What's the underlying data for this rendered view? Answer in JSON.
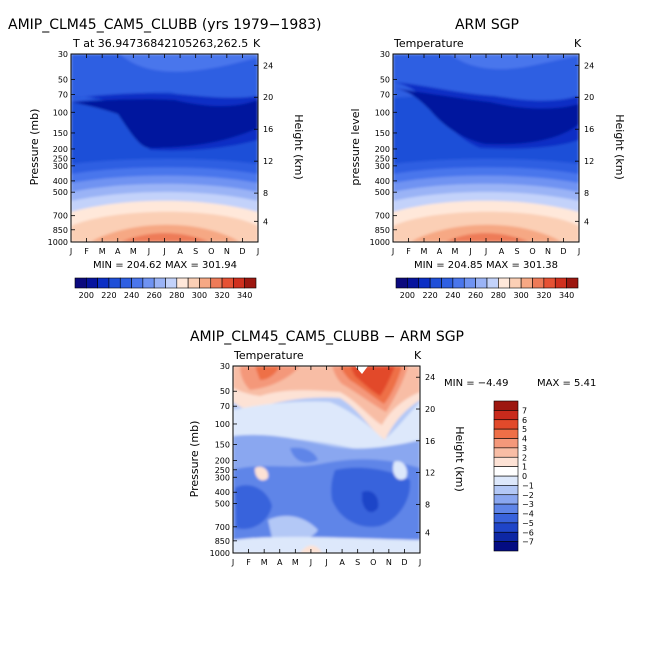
{
  "chart_data": [
    {
      "type": "heatmap",
      "panel": "model",
      "title": "AMIP_CLM45_CAM5_CLUBB (yrs 1979−1983)",
      "subtitle_left": "T at 36.94736842105263,262.5",
      "subtitle_right": "K",
      "ylabel": "Pressure (mb)",
      "y2label": "Height (km)",
      "x_ticks": [
        "J",
        "F",
        "M",
        "A",
        "M",
        "J",
        "J",
        "A",
        "S",
        "O",
        "N",
        "D",
        "J"
      ],
      "y_ticks": [
        "30",
        "50",
        "70",
        "100",
        "150",
        "200",
        "250",
        "300",
        "400",
        "500",
        "700",
        "850",
        "1000"
      ],
      "y2_ticks": [
        "24",
        "20",
        "16",
        "12",
        "8",
        "4"
      ],
      "stats": "MIN = 204.62  MAX = 301.94",
      "colorbar": {
        "levels": [
          190,
          200,
          210,
          220,
          230,
          240,
          250,
          260,
          270,
          280,
          290,
          300,
          310,
          320,
          330,
          340,
          350
        ],
        "labels": [
          "200",
          "220",
          "240",
          "260",
          "280",
          "300",
          "320",
          "340"
        ]
      }
    },
    {
      "type": "heatmap",
      "panel": "observation",
      "title": "ARM SGP",
      "subtitle_left": "Temperature",
      "subtitle_right": "K",
      "ylabel": "pressure level",
      "y2label": "Height (km)",
      "x_ticks": [
        "J",
        "F",
        "M",
        "A",
        "M",
        "J",
        "J",
        "A",
        "S",
        "O",
        "N",
        "D",
        "J"
      ],
      "y_ticks": [
        "30",
        "50",
        "70",
        "100",
        "150",
        "200",
        "250",
        "300",
        "400",
        "500",
        "700",
        "850",
        "1000"
      ],
      "y2_ticks": [
        "24",
        "20",
        "16",
        "12",
        "8",
        "4"
      ],
      "stats": "MIN = 204.85  MAX = 301.38",
      "colorbar": {
        "levels": [
          190,
          200,
          210,
          220,
          230,
          240,
          250,
          260,
          270,
          280,
          290,
          300,
          310,
          320,
          330,
          340,
          350
        ],
        "labels": [
          "200",
          "220",
          "240",
          "260",
          "280",
          "300",
          "320",
          "340"
        ]
      }
    },
    {
      "type": "heatmap",
      "panel": "difference",
      "title": "AMIP_CLM45_CAM5_CLUBB − ARM SGP",
      "subtitle_left": "Temperature",
      "subtitle_right": "K",
      "ylabel": "Pressure (mb)",
      "y2label": "Height (km)",
      "x_ticks": [
        "J",
        "F",
        "M",
        "A",
        "M",
        "J",
        "J",
        "A",
        "S",
        "O",
        "N",
        "D",
        "J"
      ],
      "y_ticks": [
        "30",
        "50",
        "70",
        "100",
        "150",
        "200",
        "250",
        "300",
        "400",
        "500",
        "700",
        "850",
        "1000"
      ],
      "y2_ticks": [
        "24",
        "20",
        "16",
        "12",
        "8",
        "4"
      ],
      "stats_min": "MIN =   −4.49",
      "stats_max": "MAX =    5.41",
      "colorbar": {
        "levels": [
          7,
          6,
          5,
          4,
          3,
          2,
          1,
          0,
          -1,
          -2,
          -3,
          -4,
          -5,
          -6,
          -7
        ],
        "labels": [
          "7",
          "6",
          "5",
          "4",
          "3",
          "2",
          "1",
          "0",
          "−1",
          "−2",
          "−3",
          "−4",
          "−5",
          "−6",
          "−7"
        ]
      }
    }
  ],
  "colors": {
    "temp_scale": [
      "#0b0a7e",
      "#06149e",
      "#0b2fc5",
      "#1f4fd8",
      "#2e5fe2",
      "#4a76ec",
      "#6f93f2",
      "#9ab3f6",
      "#c3d2fa",
      "#ffe8da",
      "#fbcfb5",
      "#f6a884",
      "#ee7b58",
      "#e65234",
      "#d0301e",
      "#9d1710"
    ],
    "diff_scale": [
      "#9d1710",
      "#c92a1c",
      "#e24a2b",
      "#ee6f47",
      "#f4987a",
      "#f8bda5",
      "#fde2d5",
      "#dde8fb",
      "#b3c8f6",
      "#8aa7f0",
      "#5f85e8",
      "#3963dc",
      "#1f45c8",
      "#0d27a4",
      "#040c82"
    ]
  }
}
